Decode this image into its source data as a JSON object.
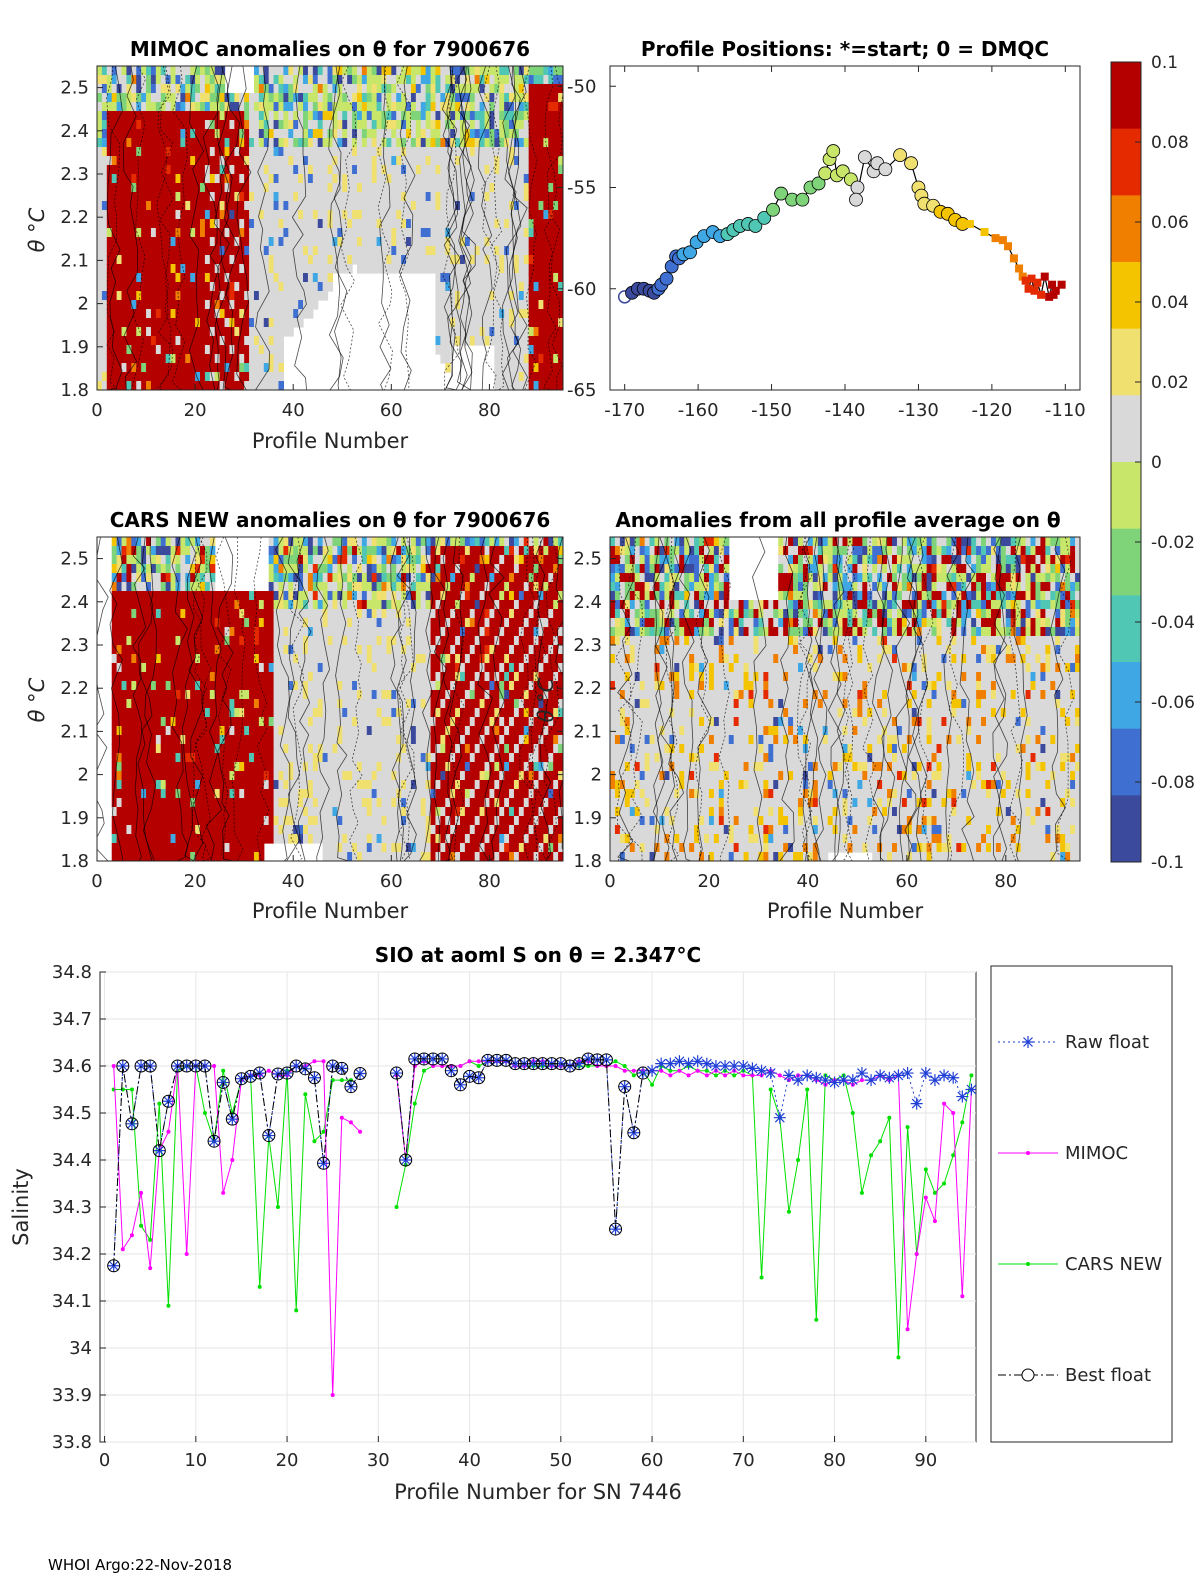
{
  "footer": "WHOI Argo:22-Nov-2018",
  "colors": {
    "raw_float": "#1f3fd6",
    "mimoc": "#ff00ff",
    "cars_new": "#00e000",
    "best_float": "#000000",
    "axis": "#262626",
    "grid": "#e6e6e6",
    "background_map": "#d9d9d9"
  },
  "colorbar": {
    "ticks": [
      "0.1",
      "0.08",
      "0.06",
      "0.04",
      "0.02",
      "0",
      "-0.02",
      "-0.04",
      "-0.06",
      "-0.08",
      "-0.1"
    ],
    "range": [
      -0.1,
      0.1
    ],
    "colormap": [
      "#3b4a9c",
      "#3f6fd1",
      "#3fa7e4",
      "#4fc7b4",
      "#7fd47a",
      "#c8e66a",
      "#d9d9d9",
      "#f0e070",
      "#f4c400",
      "#f07f00",
      "#e52a00",
      "#b50000"
    ]
  },
  "chart_data": [
    {
      "type": "heatmap",
      "id": "mimoc",
      "title": "MIMOC anomalies on θ  for 7900676",
      "xlabel": "Profile Number",
      "ylabel": "θ °C",
      "xticks": [
        "0",
        "20",
        "40",
        "60",
        "80"
      ],
      "yticks": [
        "2.5",
        "2.4",
        "2.3",
        "2.2",
        "2.1",
        "2",
        "1.9",
        "1.8"
      ],
      "right_yticks": [
        "-50",
        "-55",
        "-60",
        "-65"
      ],
      "xlim": [
        0,
        95
      ],
      "ylim": [
        1.8,
        2.55
      ]
    },
    {
      "type": "scatter",
      "id": "positions",
      "title": "Profile Positions: *=start; 0 = DMQC",
      "xticks": [
        "-170",
        "-160",
        "-150",
        "-140",
        "-130",
        "-120",
        "-110"
      ],
      "xlim": [
        -172,
        -108
      ],
      "ylim": [
        -65,
        -49
      ],
      "track": [
        [
          -170.0,
          -60.4
        ],
        [
          -169.0,
          -60.2
        ],
        [
          -168.2,
          -60.0
        ],
        [
          -167.4,
          -60.0
        ],
        [
          -166.6,
          -60.1
        ],
        [
          -166.0,
          -60.2
        ],
        [
          -165.4,
          -60.0
        ],
        [
          -165.0,
          -59.8
        ],
        [
          -164.3,
          -59.5
        ],
        [
          -163.6,
          -58.9
        ],
        [
          -163.0,
          -58.4
        ],
        [
          -162.6,
          -58.5
        ],
        [
          -162.0,
          -58.3
        ],
        [
          -161.1,
          -58.2
        ],
        [
          -160.2,
          -57.7
        ],
        [
          -159.2,
          -57.4
        ],
        [
          -158.0,
          -57.2
        ],
        [
          -157.0,
          -57.4
        ],
        [
          -156.0,
          -57.3
        ],
        [
          -155.2,
          -57.1
        ],
        [
          -154.3,
          -56.9
        ],
        [
          -153.2,
          -56.8
        ],
        [
          -152.2,
          -56.9
        ],
        [
          -151.0,
          -56.5
        ],
        [
          -149.8,
          -56.1
        ],
        [
          -148.7,
          -55.3
        ],
        [
          -147.2,
          -55.6
        ],
        [
          -145.8,
          -55.6
        ],
        [
          -144.7,
          -55.0
        ],
        [
          -143.6,
          -54.8
        ],
        [
          -142.7,
          -54.3
        ],
        [
          -142.1,
          -53.6
        ],
        [
          -141.6,
          -53.2
        ],
        [
          -141.1,
          -54.4
        ],
        [
          -140.3,
          -54.2
        ],
        [
          -139.2,
          -54.6
        ],
        [
          -138.3,
          -55.0
        ],
        [
          -138.5,
          -55.6
        ],
        [
          -137.3,
          -53.5
        ],
        [
          -136.1,
          -54.2
        ],
        [
          -135.6,
          -53.8
        ],
        [
          -134.5,
          -54.1
        ],
        [
          -132.5,
          -53.4
        ],
        [
          -131.0,
          -53.8
        ],
        [
          -130.0,
          -55.0
        ],
        [
          -129.6,
          -55.4
        ],
        [
          -129.2,
          -55.8
        ],
        [
          -128.0,
          -55.9
        ],
        [
          -127.0,
          -56.2
        ],
        [
          -126.0,
          -56.3
        ],
        [
          -125.0,
          -56.6
        ],
        [
          -124.0,
          -56.8
        ],
        [
          -123.0,
          -56.8
        ],
        [
          -121.0,
          -57.2
        ],
        [
          -119.5,
          -57.5
        ],
        [
          -118.5,
          -57.6
        ],
        [
          -117.8,
          -57.9
        ],
        [
          -117.0,
          -58.5
        ],
        [
          -116.3,
          -59.0
        ],
        [
          -115.8,
          -59.4
        ],
        [
          -115.4,
          -59.6
        ],
        [
          -115.0,
          -60.0
        ],
        [
          -114.6,
          -59.5
        ],
        [
          -114.2,
          -60.1
        ],
        [
          -113.8,
          -59.7
        ],
        [
          -113.3,
          -60.3
        ],
        [
          -112.8,
          -59.4
        ],
        [
          -112.2,
          -60.4
        ],
        [
          -111.8,
          -59.8
        ],
        [
          -111.3,
          -60.1
        ],
        [
          -110.5,
          -59.8
        ],
        [
          -111.6,
          -60.3
        ]
      ]
    },
    {
      "type": "heatmap",
      "id": "cars",
      "title": "CARS NEW anomalies on θ for 7900676",
      "xlabel": "Profile Number",
      "ylabel": "θ °C",
      "xticks": [
        "0",
        "20",
        "40",
        "60",
        "80"
      ],
      "yticks": [
        "2.5",
        "2.4",
        "2.3",
        "2.2",
        "2.1",
        "2",
        "1.9",
        "1.8"
      ],
      "xlim": [
        0,
        95
      ],
      "ylim": [
        1.8,
        2.55
      ]
    },
    {
      "type": "heatmap",
      "id": "average",
      "title": "Anomalies from all profile average on θ",
      "xlabel": "Profile Number",
      "ylabel": "θ °C",
      "xticks": [
        "0",
        "20",
        "40",
        "60",
        "80"
      ],
      "yticks": [
        "2.5",
        "2.4",
        "2.3",
        "2.2",
        "2.1",
        "2",
        "1.9",
        "1.8"
      ],
      "xlim": [
        0,
        95
      ],
      "ylim": [
        1.8,
        2.55
      ]
    },
    {
      "type": "line",
      "id": "salinity",
      "title": "SIO at aoml S on θ = 2.347°C",
      "xlabel": "Profile Number for SN 7446",
      "ylabel": "Salinity",
      "xticks": [
        "0",
        "10",
        "20",
        "30",
        "40",
        "50",
        "60",
        "70",
        "80",
        "90"
      ],
      "yticks": [
        "34.8",
        "34.7",
        "34.6",
        "34.5",
        "34.4",
        "34.3",
        "34.2",
        "34.1",
        "34",
        "33.9",
        "33.8"
      ],
      "xlim": [
        -0.5,
        95.5
      ],
      "ylim": [
        33.8,
        34.8
      ],
      "x": [
        1,
        2,
        3,
        4,
        5,
        6,
        7,
        8,
        9,
        10,
        11,
        12,
        13,
        14,
        15,
        16,
        17,
        18,
        19,
        20,
        21,
        22,
        23,
        24,
        25,
        26,
        27,
        28,
        29,
        30,
        31,
        32,
        33,
        34,
        35,
        36,
        37,
        38,
        39,
        40,
        41,
        42,
        43,
        44,
        45,
        46,
        47,
        48,
        49,
        50,
        51,
        52,
        53,
        54,
        55,
        56,
        57,
        58,
        59,
        60,
        61,
        62,
        63,
        64,
        65,
        66,
        67,
        68,
        69,
        70,
        71,
        72,
        73,
        74,
        75,
        76,
        77,
        78,
        79,
        80,
        81,
        82,
        83,
        84,
        85,
        86,
        87,
        88,
        89,
        90,
        91,
        92,
        93,
        94,
        95
      ],
      "series": [
        {
          "name": "Raw float",
          "values": [
            34.175,
            34.6,
            34.477,
            34.6,
            34.6,
            34.42,
            34.525,
            34.6,
            34.6,
            34.6,
            34.6,
            34.44,
            34.565,
            34.487,
            34.573,
            34.578,
            34.585,
            34.452,
            34.583,
            34.585,
            34.6,
            34.594,
            34.575,
            34.393,
            34.6,
            34.595,
            34.556,
            34.584,
            null,
            null,
            null,
            34.585,
            34.4,
            34.615,
            34.615,
            34.615,
            34.615,
            34.59,
            34.56,
            34.578,
            34.575,
            34.612,
            34.612,
            34.612,
            34.605,
            34.605,
            34.605,
            34.605,
            34.605,
            34.605,
            34.6,
            34.605,
            34.615,
            34.613,
            34.613,
            34.253,
            34.556,
            34.458,
            34.585,
            34.59,
            34.605,
            34.605,
            34.61,
            34.605,
            34.61,
            34.605,
            34.6,
            34.6,
            34.6,
            34.6,
            34.595,
            34.59,
            34.585,
            34.49,
            34.58,
            34.57,
            34.58,
            34.575,
            34.57,
            34.565,
            34.57,
            34.57,
            34.585,
            34.57,
            34.58,
            34.575,
            34.58,
            34.585,
            34.52,
            34.585,
            34.57,
            34.58,
            34.575,
            34.535,
            34.55
          ]
        },
        {
          "name": "MIMOC",
          "values": [
            34.6,
            34.21,
            34.24,
            34.33,
            34.17,
            34.42,
            34.46,
            34.6,
            34.2,
            34.6,
            34.6,
            34.6,
            34.33,
            34.4,
            34.57,
            34.58,
            34.58,
            34.59,
            34.58,
            34.58,
            34.6,
            34.6,
            34.61,
            34.61,
            33.9,
            34.49,
            34.48,
            34.46,
            null,
            null,
            null,
            34.58,
            34.4,
            34.6,
            34.61,
            34.6,
            34.6,
            34.6,
            34.6,
            34.61,
            34.61,
            34.61,
            34.61,
            34.61,
            34.6,
            34.6,
            34.61,
            34.61,
            34.6,
            34.6,
            34.6,
            34.61,
            34.61,
            34.6,
            34.6,
            34.6,
            34.59,
            34.59,
            34.59,
            34.59,
            34.59,
            34.58,
            34.59,
            34.58,
            34.59,
            34.58,
            34.59,
            34.58,
            34.59,
            34.58,
            34.58,
            34.58,
            34.59,
            34.58,
            34.57,
            34.58,
            34.58,
            34.57,
            34.56,
            34.57,
            34.57,
            34.56,
            34.57,
            34.57,
            34.58,
            34.57,
            34.58,
            34.04,
            34.2,
            34.32,
            34.27,
            34.52,
            34.5,
            34.11,
            34.55
          ]
        },
        {
          "name": "CARS NEW",
          "values": [
            34.55,
            34.55,
            34.55,
            34.26,
            34.23,
            34.52,
            34.09,
            34.59,
            34.6,
            34.6,
            34.5,
            34.44,
            34.59,
            34.5,
            34.57,
            34.58,
            34.13,
            34.45,
            34.3,
            34.59,
            34.08,
            34.54,
            34.44,
            34.46,
            34.57,
            34.57,
            34.57,
            null,
            null,
            null,
            null,
            34.3,
            34.39,
            34.52,
            34.59,
            34.6,
            34.6,
            34.6,
            34.6,
            34.61,
            34.6,
            34.61,
            34.61,
            34.61,
            34.6,
            34.6,
            34.6,
            34.6,
            34.6,
            34.6,
            34.6,
            34.6,
            34.6,
            34.6,
            34.6,
            34.61,
            34.6,
            34.58,
            34.59,
            34.56,
            34.6,
            34.59,
            34.59,
            34.6,
            34.59,
            34.59,
            34.58,
            34.59,
            34.58,
            34.59,
            34.58,
            34.15,
            34.55,
            34.49,
            34.29,
            34.4,
            34.55,
            34.06,
            34.58,
            34.57,
            34.58,
            34.5,
            34.33,
            34.41,
            34.44,
            34.49,
            33.98,
            34.47,
            34.2,
            34.38,
            34.33,
            34.35,
            34.41,
            34.48,
            34.58
          ]
        },
        {
          "name": "Best float",
          "values": [
            34.175,
            34.6,
            34.477,
            34.6,
            34.6,
            34.42,
            34.525,
            34.6,
            34.6,
            34.6,
            34.6,
            34.44,
            34.565,
            34.487,
            34.573,
            34.578,
            34.585,
            34.452,
            34.583,
            34.585,
            34.6,
            34.594,
            34.575,
            34.393,
            34.6,
            34.595,
            34.556,
            34.584,
            null,
            null,
            null,
            34.585,
            34.4,
            34.615,
            34.615,
            34.615,
            34.615,
            34.59,
            34.56,
            34.578,
            34.575,
            34.612,
            34.612,
            34.612,
            34.605,
            34.605,
            34.605,
            34.605,
            34.605,
            34.605,
            34.6,
            34.605,
            34.615,
            34.613,
            34.613,
            34.253,
            34.556,
            34.458,
            34.585,
            null,
            null,
            null,
            null,
            null,
            null,
            null,
            null,
            null,
            null,
            null,
            null,
            null,
            null,
            null,
            null,
            null,
            null,
            null,
            null,
            null,
            null,
            null,
            null,
            null,
            null,
            null,
            null,
            null,
            null,
            null,
            null,
            null,
            null,
            null,
            null
          ]
        }
      ],
      "legend": [
        "Raw float",
        "MIMOC",
        "CARS NEW",
        "Best float"
      ]
    }
  ]
}
